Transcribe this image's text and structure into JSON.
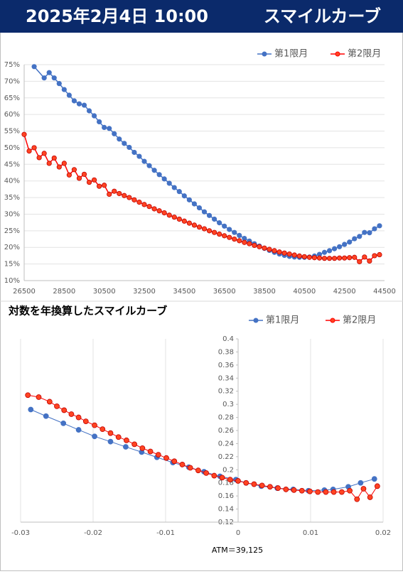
{
  "header": {
    "date": "2025年2月4日 10:00",
    "title": "スマイルカーブ"
  },
  "chart_data": [
    {
      "type": "line",
      "legend": "top-right",
      "grid_y": true,
      "y_axis_position": "left",
      "xlim": [
        26500,
        44500
      ],
      "xticks": [
        26500,
        28500,
        30500,
        32500,
        34500,
        36500,
        38500,
        40500,
        42500,
        44500
      ],
      "ylim": [
        10,
        75
      ],
      "yticks": [
        {
          "value": 10,
          "label": "10%"
        },
        {
          "value": 15,
          "label": "15%"
        },
        {
          "value": 20,
          "label": "20%"
        },
        {
          "value": 25,
          "label": "25%"
        },
        {
          "value": 30,
          "label": "30%"
        },
        {
          "value": 35,
          "label": "35%"
        },
        {
          "value": 40,
          "label": "40%"
        },
        {
          "value": 45,
          "label": "45%"
        },
        {
          "value": 50,
          "label": "50%"
        },
        {
          "value": 55,
          "label": "55%"
        },
        {
          "value": 60,
          "label": "60%"
        },
        {
          "value": 65,
          "label": "65%"
        },
        {
          "value": 70,
          "label": "70%"
        },
        {
          "value": 75,
          "label": "75%"
        }
      ],
      "series": [
        {
          "name": "第1限月",
          "color": "#4472c4",
          "marker_color": "#4472c4",
          "x": [
            27000,
            27500,
            27750,
            28000,
            28250,
            28500,
            28750,
            29000,
            29250,
            29500,
            29750,
            30000,
            30250,
            30500,
            30750,
            31000,
            31250,
            31500,
            31750,
            32000,
            32250,
            32500,
            32750,
            33000,
            33250,
            33500,
            33750,
            34000,
            34250,
            34500,
            34750,
            35000,
            35250,
            35500,
            35750,
            36000,
            36250,
            36500,
            36750,
            37000,
            37250,
            37500,
            37750,
            38000,
            38250,
            38500,
            38750,
            39000,
            39250,
            39500,
            39750,
            40000,
            40250,
            40500,
            40750,
            41000,
            41250,
            41500,
            41750,
            42000,
            42250,
            42500,
            42750,
            43000,
            43250,
            43500,
            43750,
            44000,
            44250
          ],
          "values": [
            74.4,
            71.0,
            72.6,
            71.0,
            69.3,
            67.5,
            65.8,
            64.1,
            63.2,
            62.8,
            61.1,
            59.6,
            57.8,
            56.1,
            55.8,
            54.2,
            52.6,
            51.3,
            50.1,
            48.6,
            47.4,
            45.9,
            44.6,
            43.2,
            41.9,
            40.6,
            39.3,
            38.0,
            36.8,
            35.5,
            34.3,
            33.1,
            31.9,
            30.7,
            29.6,
            28.5,
            27.4,
            26.4,
            25.4,
            24.5,
            23.6,
            22.7,
            21.9,
            21.1,
            20.4,
            19.7,
            19.1,
            18.5,
            18.0,
            17.6,
            17.3,
            17.1,
            17.0,
            17.0,
            17.1,
            17.4,
            17.9,
            18.5,
            19.0,
            19.6,
            20.2,
            20.9,
            21.6,
            22.6,
            23.3,
            24.5,
            24.4,
            25.6,
            26.5
          ]
        },
        {
          "name": "第2限月",
          "color": "#ff0000",
          "marker_color": "#ff4422",
          "x": [
            26500,
            26750,
            27000,
            27250,
            27500,
            27750,
            28000,
            28250,
            28500,
            28750,
            29000,
            29250,
            29500,
            29750,
            30000,
            30250,
            30500,
            30750,
            31000,
            31250,
            31500,
            31750,
            32000,
            32250,
            32500,
            32750,
            33000,
            33250,
            33500,
            33750,
            34000,
            34250,
            34500,
            34750,
            35000,
            35250,
            35500,
            35750,
            36000,
            36250,
            36500,
            36750,
            37000,
            37250,
            37500,
            37750,
            38000,
            38250,
            38500,
            38750,
            39000,
            39250,
            39500,
            39750,
            40000,
            40250,
            40500,
            40750,
            41000,
            41250,
            41500,
            41750,
            42000,
            42250,
            42500,
            42750,
            43000,
            43250,
            43500,
            43750,
            44000,
            44250
          ],
          "values": [
            54.0,
            49.0,
            50.0,
            47.0,
            48.3,
            45.3,
            46.9,
            44.2,
            45.3,
            41.8,
            43.4,
            40.8,
            42.0,
            39.6,
            40.3,
            38.4,
            38.7,
            36.0,
            36.9,
            36.2,
            35.6,
            35.0,
            34.3,
            33.6,
            32.9,
            32.3,
            31.6,
            31.0,
            30.4,
            29.7,
            29.1,
            28.5,
            27.9,
            27.3,
            26.7,
            26.1,
            25.6,
            25.0,
            24.5,
            24.0,
            23.5,
            23.0,
            22.5,
            22.0,
            21.5,
            21.1,
            20.6,
            20.2,
            19.8,
            19.4,
            19.0,
            18.6,
            18.3,
            18.0,
            17.7,
            17.4,
            17.2,
            17.0,
            16.9,
            16.8,
            16.7,
            16.7,
            16.7,
            16.8,
            16.8,
            16.9,
            17.0,
            15.7,
            17.1,
            15.9,
            17.5,
            17.8
          ]
        }
      ]
    },
    {
      "type": "line",
      "title": "対数を年換算したスマイルカーブ",
      "annotation": "ATM＝39,125",
      "legend": "top-right",
      "grid_x": true,
      "y_axis_position": "zero",
      "xlim": [
        -0.03,
        0.02
      ],
      "xticks": [
        -0.03,
        -0.02,
        -0.01,
        0,
        0.01,
        0.02
      ],
      "ylim": [
        0.12,
        0.4
      ],
      "yticks": [
        0.12,
        0.14,
        0.16,
        0.18,
        0.2,
        0.22,
        0.24,
        0.26,
        0.28,
        0.3,
        0.32,
        0.34,
        0.36,
        0.38,
        0.4
      ],
      "series": [
        {
          "name": "第1限月",
          "color": "#4472c4",
          "marker_color": "#4472c4",
          "x": [
            -0.0286,
            -0.0265,
            -0.0241,
            -0.022,
            -0.0198,
            -0.0176,
            -0.0155,
            -0.0133,
            -0.0112,
            -0.009,
            -0.0068,
            -0.0047,
            -0.0025,
            -0.0003,
            0.0011,
            0.0032,
            0.0054,
            0.0076,
            0.0097,
            0.0119,
            0.0131,
            0.0152,
            0.0169,
            0.0188
          ],
          "values": [
            0.292,
            0.282,
            0.271,
            0.261,
            0.251,
            0.243,
            0.235,
            0.227,
            0.219,
            0.211,
            0.204,
            0.197,
            0.19,
            0.185,
            0.18,
            0.175,
            0.172,
            0.17,
            0.168,
            0.169,
            0.17,
            0.174,
            0.18,
            0.186
          ]
        },
        {
          "name": "第2限月",
          "color": "#ff0000",
          "marker_color": "#ff4422",
          "x": [
            -0.029,
            -0.0275,
            -0.026,
            -0.025,
            -0.024,
            -0.023,
            -0.022,
            -0.021,
            -0.0198,
            -0.0187,
            -0.0176,
            -0.0165,
            -0.0154,
            -0.0143,
            -0.0132,
            -0.0121,
            -0.011,
            -0.0099,
            -0.0088,
            -0.0077,
            -0.0066,
            -0.0055,
            -0.0044,
            -0.0033,
            -0.0022,
            -0.0011,
            0,
            0.0011,
            0.0022,
            0.0033,
            0.0044,
            0.0055,
            0.0066,
            0.0077,
            0.0088,
            0.0099,
            0.011,
            0.0121,
            0.0132,
            0.0143,
            0.0154,
            0.0164,
            0.0173,
            0.0182,
            0.0192
          ],
          "values": [
            0.314,
            0.311,
            0.304,
            0.297,
            0.291,
            0.285,
            0.28,
            0.274,
            0.268,
            0.262,
            0.256,
            0.25,
            0.245,
            0.239,
            0.233,
            0.228,
            0.223,
            0.218,
            0.213,
            0.208,
            0.203,
            0.199,
            0.195,
            0.191,
            0.188,
            0.185,
            0.183,
            0.18,
            0.178,
            0.176,
            0.174,
            0.172,
            0.17,
            0.169,
            0.168,
            0.167,
            0.166,
            0.166,
            0.166,
            0.166,
            0.168,
            0.155,
            0.171,
            0.158,
            0.175
          ]
        }
      ]
    }
  ]
}
